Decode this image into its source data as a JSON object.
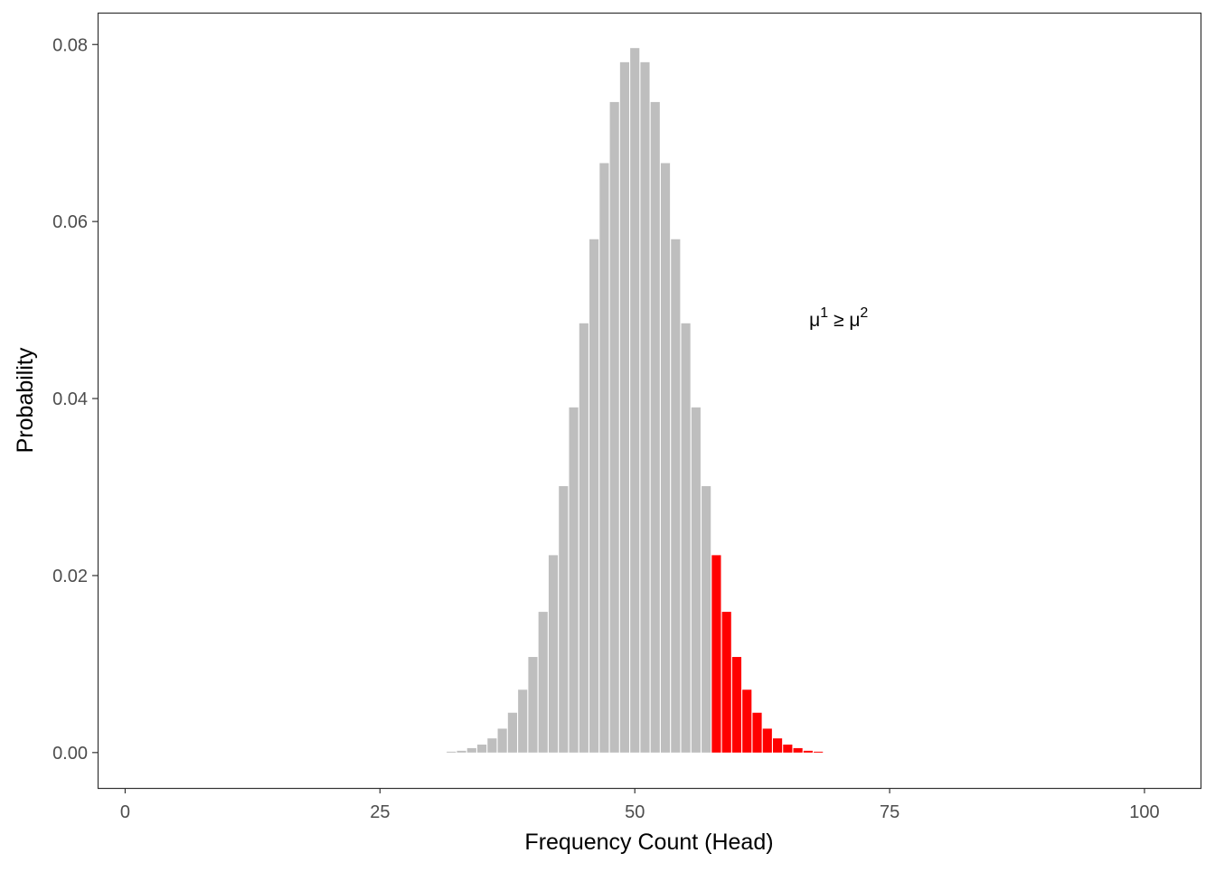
{
  "chart_data": {
    "type": "bar",
    "xlabel": "Frequency Count (Head)",
    "ylabel": "Probability",
    "xlim": [
      -2.7,
      105.5
    ],
    "ylim": [
      -0.004,
      0.0836
    ],
    "x_ticks": [
      0,
      25,
      50,
      75,
      100
    ],
    "x_tick_labels": [
      "0",
      "25",
      "50",
      "75",
      "100"
    ],
    "y_ticks": [
      0.0,
      0.02,
      0.04,
      0.06,
      0.08
    ],
    "y_tick_labels": [
      "0.00",
      "0.02",
      "0.04",
      "0.06",
      "0.08"
    ],
    "grid": false,
    "legend": "none",
    "annotation": {
      "base1": "μ",
      "sup1": "1",
      "op": " ≥ ",
      "base2": "μ",
      "sup2": "2",
      "x": 70,
      "y": 0.049
    },
    "colors": {
      "default_bar": "#bebebe",
      "highlight_bar": "#ff0000"
    },
    "highlight_from": 58,
    "x": [
      32,
      33,
      34,
      35,
      36,
      37,
      38,
      39,
      40,
      41,
      42,
      43,
      44,
      45,
      46,
      47,
      48,
      49,
      50,
      51,
      52,
      53,
      54,
      55,
      56,
      57,
      58,
      59,
      60,
      61,
      62,
      63,
      64,
      65,
      66,
      67,
      68
    ],
    "values": [
      0.0001,
      0.0002,
      0.0005,
      0.0009,
      0.0016,
      0.0027,
      0.0045,
      0.0071,
      0.0108,
      0.0159,
      0.0223,
      0.0301,
      0.039,
      0.0485,
      0.058,
      0.0666,
      0.0735,
      0.078,
      0.0796,
      0.078,
      0.0735,
      0.0666,
      0.058,
      0.0485,
      0.039,
      0.0301,
      0.0223,
      0.0159,
      0.0108,
      0.0071,
      0.0045,
      0.0027,
      0.0016,
      0.0009,
      0.0005,
      0.0002,
      0.0001
    ]
  }
}
